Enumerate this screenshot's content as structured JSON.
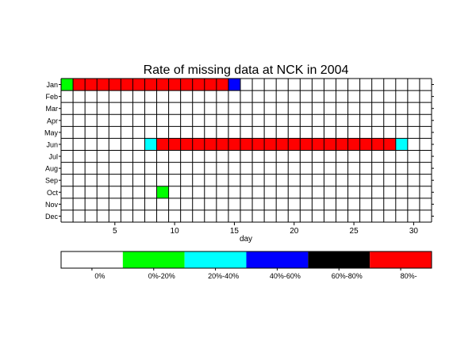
{
  "chart_data": {
    "type": "heatmap",
    "title": "Rate of missing data at NCK in 2004",
    "xlabel": "day",
    "ylabel": "",
    "x_ticks": [
      5,
      10,
      15,
      20,
      25,
      30
    ],
    "days": 31,
    "months": [
      "Jan",
      "Feb",
      "Mar",
      "Apr",
      "May",
      "Jun",
      "Jul",
      "Aug",
      "Sep",
      "Oct",
      "Nov",
      "Dec"
    ],
    "legend": {
      "categories": [
        "0%",
        "0%-20%",
        "20%-40%",
        "40%-60%",
        "60%-80%",
        "80%-"
      ],
      "colors": [
        "#ffffff",
        "#00ff00",
        "#00ffff",
        "#0000ff",
        "#000000",
        "#ff0000"
      ]
    },
    "grid": true,
    "cells": [
      {
        "month": "Jan",
        "day": 1,
        "category": 1
      },
      {
        "month": "Jan",
        "day": 2,
        "category": 5
      },
      {
        "month": "Jan",
        "day": 3,
        "category": 5
      },
      {
        "month": "Jan",
        "day": 4,
        "category": 5
      },
      {
        "month": "Jan",
        "day": 5,
        "category": 5
      },
      {
        "month": "Jan",
        "day": 6,
        "category": 5
      },
      {
        "month": "Jan",
        "day": 7,
        "category": 5
      },
      {
        "month": "Jan",
        "day": 8,
        "category": 5
      },
      {
        "month": "Jan",
        "day": 9,
        "category": 5
      },
      {
        "month": "Jan",
        "day": 10,
        "category": 5
      },
      {
        "month": "Jan",
        "day": 11,
        "category": 5
      },
      {
        "month": "Jan",
        "day": 12,
        "category": 5
      },
      {
        "month": "Jan",
        "day": 13,
        "category": 5
      },
      {
        "month": "Jan",
        "day": 14,
        "category": 5
      },
      {
        "month": "Jan",
        "day": 15,
        "category": 3
      },
      {
        "month": "Jun",
        "day": 8,
        "category": 2
      },
      {
        "month": "Jun",
        "day": 9,
        "category": 5
      },
      {
        "month": "Jun",
        "day": 10,
        "category": 5
      },
      {
        "month": "Jun",
        "day": 11,
        "category": 5
      },
      {
        "month": "Jun",
        "day": 12,
        "category": 5
      },
      {
        "month": "Jun",
        "day": 13,
        "category": 5
      },
      {
        "month": "Jun",
        "day": 14,
        "category": 5
      },
      {
        "month": "Jun",
        "day": 15,
        "category": 5
      },
      {
        "month": "Jun",
        "day": 16,
        "category": 5
      },
      {
        "month": "Jun",
        "day": 17,
        "category": 5
      },
      {
        "month": "Jun",
        "day": 18,
        "category": 5
      },
      {
        "month": "Jun",
        "day": 19,
        "category": 5
      },
      {
        "month": "Jun",
        "day": 20,
        "category": 5
      },
      {
        "month": "Jun",
        "day": 21,
        "category": 5
      },
      {
        "month": "Jun",
        "day": 22,
        "category": 5
      },
      {
        "month": "Jun",
        "day": 23,
        "category": 5
      },
      {
        "month": "Jun",
        "day": 24,
        "category": 5
      },
      {
        "month": "Jun",
        "day": 25,
        "category": 5
      },
      {
        "month": "Jun",
        "day": 26,
        "category": 5
      },
      {
        "month": "Jun",
        "day": 27,
        "category": 5
      },
      {
        "month": "Jun",
        "day": 28,
        "category": 5
      },
      {
        "month": "Jun",
        "day": 29,
        "category": 2
      },
      {
        "month": "Oct",
        "day": 9,
        "category": 1
      }
    ]
  }
}
